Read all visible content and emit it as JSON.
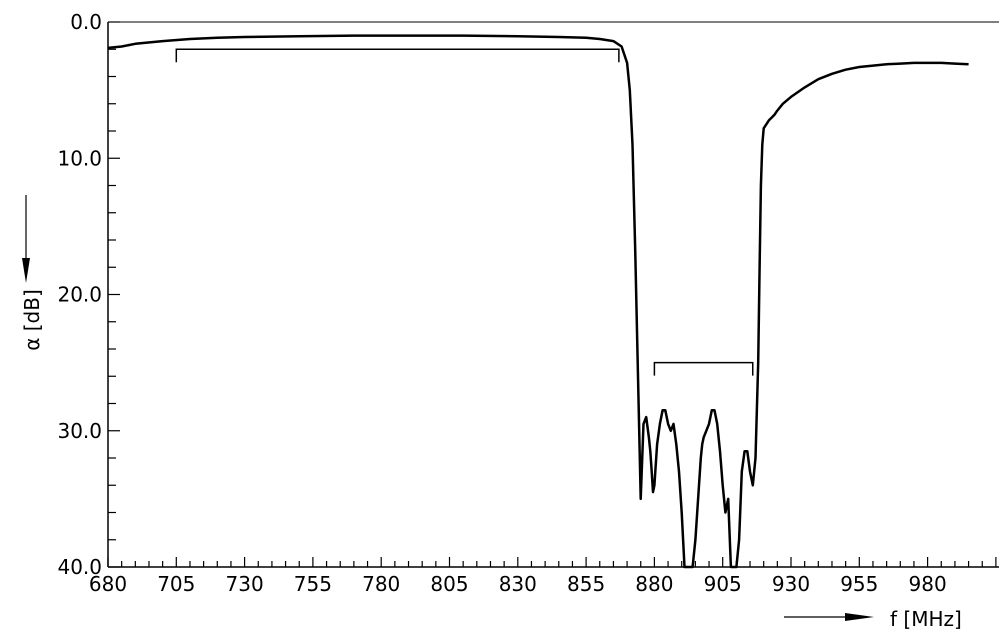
{
  "chart_data": {
    "type": "line",
    "title": "",
    "xlabel": "f  [MHz]",
    "ylabel": "α  [dB]",
    "xlim": [
      680,
      995
    ],
    "ylim": [
      0.0,
      40.0
    ],
    "y_inverted": true,
    "grid": false,
    "x_ticks": [
      680,
      705,
      730,
      755,
      780,
      805,
      830,
      855,
      880,
      905,
      930,
      955,
      980
    ],
    "x_tick_labels": [
      "680",
      "705",
      "730",
      "755",
      "780",
      "805",
      "830",
      "855",
      "880",
      "905",
      "930",
      "955",
      "980"
    ],
    "y_ticks": [
      0,
      10,
      20,
      30,
      40
    ],
    "y_tick_labels": [
      "0.0",
      "10.0",
      "20.0",
      "30.0",
      "40.0"
    ],
    "series": [
      {
        "x": [
          680,
          685,
          690,
          700,
          710,
          720,
          730,
          750,
          770,
          790,
          800,
          810,
          830,
          845,
          855,
          860,
          865,
          868,
          870,
          871,
          872,
          873,
          874,
          875,
          876,
          877,
          878,
          878.5,
          879,
          879.5,
          880,
          881,
          882,
          883,
          884,
          885,
          886,
          887,
          888,
          889,
          890,
          891,
          892,
          893,
          894,
          895,
          896,
          897,
          897.5,
          898,
          899,
          900,
          901,
          902,
          903,
          904,
          905,
          906,
          907,
          908,
          909,
          910,
          911,
          912,
          913,
          914,
          915,
          916,
          917,
          918,
          918.5,
          919,
          919.5,
          920,
          921,
          922,
          923,
          924,
          925,
          927,
          930,
          935,
          940,
          945,
          950,
          955,
          960,
          965,
          970,
          975,
          980,
          985,
          990,
          995
        ],
        "y": [
          1.9,
          1.8,
          1.6,
          1.4,
          1.25,
          1.15,
          1.1,
          1.05,
          1.0,
          1.0,
          1.0,
          1.0,
          1.05,
          1.1,
          1.15,
          1.25,
          1.4,
          1.8,
          3.0,
          5.0,
          9.0,
          17.0,
          26.0,
          35.0,
          29.5,
          29.0,
          30.5,
          31.5,
          33.0,
          34.5,
          34.0,
          31.0,
          29.5,
          28.5,
          28.5,
          29.5,
          30.0,
          29.5,
          31.0,
          33.0,
          36.0,
          40.0,
          40.0,
          40.0,
          40.0,
          38.0,
          35.0,
          32.0,
          31.0,
          30.5,
          30.0,
          29.5,
          28.5,
          28.5,
          29.5,
          31.5,
          34.0,
          36.0,
          35.0,
          40.0,
          40.0,
          40.0,
          38.0,
          33.0,
          31.5,
          31.5,
          33.0,
          34.0,
          32.0,
          25.0,
          18.0,
          12.0,
          9.0,
          7.8,
          7.5,
          7.2,
          7.0,
          6.8,
          6.5,
          6.0,
          5.5,
          4.8,
          4.2,
          3.8,
          3.5,
          3.3,
          3.2,
          3.1,
          3.05,
          3.0,
          3.0,
          3.0,
          3.05,
          3.1
        ]
      }
    ],
    "annotations": [
      {
        "type": "bracket",
        "x_start": 705,
        "x_end": 867,
        "y": 2.0
      },
      {
        "type": "bracket",
        "x_start": 880,
        "x_end": 916,
        "y": 25.0
      }
    ]
  }
}
